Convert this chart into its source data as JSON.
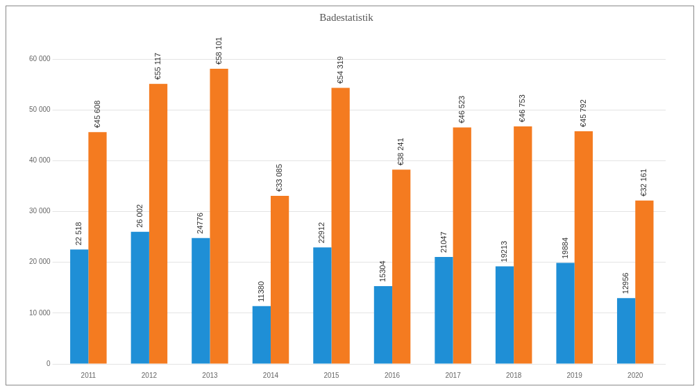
{
  "chart_data": {
    "type": "bar",
    "title": "Badestatistik",
    "categories": [
      "2011",
      "2012",
      "2013",
      "2014",
      "2015",
      "2016",
      "2017",
      "2018",
      "2019",
      "2020"
    ],
    "series": [
      {
        "color": "#1f8fd6",
        "values": [
          22518,
          26002,
          24776,
          11380,
          22912,
          15304,
          21047,
          19213,
          19884,
          12956
        ],
        "value_labels": [
          "22 518",
          "26 002",
          "24776",
          "11380",
          "22912",
          "15304",
          "21047",
          "19213",
          "19884",
          "12956"
        ]
      },
      {
        "color": "#f47b20",
        "values": [
          45608,
          55117,
          58101,
          33085,
          54319,
          38241,
          46523,
          46753,
          45792,
          32161
        ],
        "value_labels": [
          "€45 608",
          "€55 117",
          "€58 101",
          "€33 085",
          "€54 319",
          "€38 241",
          "€46 523",
          "€46 753",
          "€45 792",
          "€32 161"
        ]
      }
    ],
    "ylim": [
      0,
      60000
    ],
    "yticks": [
      {
        "value": 0,
        "label": "0"
      },
      {
        "value": 10000,
        "label": "10 000"
      },
      {
        "value": 20000,
        "label": "20 000"
      },
      {
        "value": 30000,
        "label": "30 000"
      },
      {
        "value": 40000,
        "label": "40 000"
      },
      {
        "value": 50000,
        "label": "50 000"
      },
      {
        "value": 60000,
        "label": "60 000"
      }
    ],
    "grid": "y"
  }
}
